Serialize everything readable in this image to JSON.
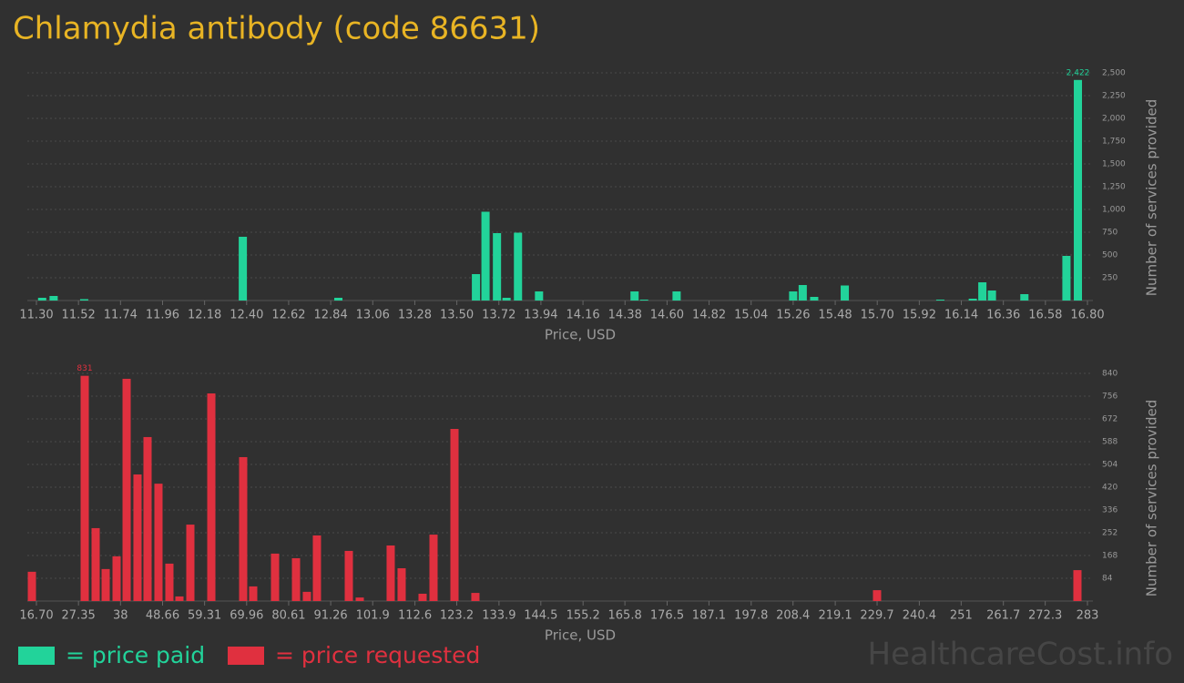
{
  "title": "Chlamydia antibody (code 86631)",
  "watermark": "HealthcareCost.info",
  "chart_data": [
    {
      "type": "bar",
      "xlabel": "Price, USD",
      "ylabel": "Number of services provided",
      "x": [
        11.33,
        11.39,
        11.55,
        12.38,
        12.88,
        13.6,
        13.65,
        13.71,
        13.76,
        13.82,
        13.93,
        14.43,
        14.48,
        14.65,
        15.26,
        15.31,
        15.37,
        15.53,
        16.03,
        16.2,
        16.25,
        16.3,
        16.47,
        16.69,
        16.75
      ],
      "series": [
        {
          "name": "= price paid",
          "color": "#22d39a",
          "values": [
            30,
            50,
            15,
            700,
            30,
            290,
            975,
            740,
            30,
            745,
            100,
            100,
            10,
            100,
            100,
            170,
            40,
            165,
            10,
            20,
            200,
            110,
            70,
            490,
            2422
          ],
          "value_labels": [
            null,
            null,
            null,
            null,
            null,
            null,
            null,
            null,
            null,
            null,
            null,
            null,
            null,
            null,
            null,
            null,
            null,
            null,
            null,
            null,
            null,
            null,
            null,
            null,
            "2,422"
          ]
        }
      ],
      "xlim": [
        11.3,
        16.8
      ],
      "xticks": [
        {
          "value": 11.3,
          "label": "11.30"
        },
        11.52,
        11.74,
        11.96,
        12.18,
        {
          "value": 12.4,
          "label": "12.40"
        },
        12.62,
        12.84,
        13.06,
        13.28,
        {
          "value": 13.5,
          "label": "13.50"
        },
        13.72,
        13.94,
        14.16,
        14.38,
        {
          "value": 14.6,
          "label": "14.60"
        },
        14.82,
        15.04,
        15.26,
        15.48,
        {
          "value": 15.7,
          "label": "15.70"
        },
        15.92,
        16.14,
        16.36,
        16.58,
        {
          "value": 16.8,
          "label": "16.80"
        }
      ],
      "ylim": [
        0,
        2500
      ],
      "yticks": [
        {
          "value": 250,
          "label": "250"
        },
        {
          "value": 500,
          "label": "500"
        },
        {
          "value": 750,
          "label": "750"
        },
        {
          "value": 1000,
          "label": "1,000"
        },
        {
          "value": 1250,
          "label": "1,250"
        },
        {
          "value": 1500,
          "label": "1,500"
        },
        {
          "value": 1750,
          "label": "1,750"
        },
        {
          "value": 2000,
          "label": "2,000"
        },
        {
          "value": 2250,
          "label": "2,250"
        },
        {
          "value": 2500,
          "label": "2,500"
        }
      ],
      "grid": true
    },
    {
      "type": "bar",
      "xlabel": "Price, USD",
      "ylabel": "Number of services provided",
      "x": [
        15.55,
        28.93,
        31.7,
        34.24,
        37.01,
        39.55,
        42.31,
        44.85,
        47.62,
        50.39,
        52.93,
        55.7,
        61.01,
        69.08,
        71.62,
        77.16,
        82.47,
        85.23,
        87.77,
        95.85,
        98.62,
        106.46,
        109.23,
        114.54,
        117.31,
        122.62,
        127.92,
        229.69,
        280.46
      ],
      "series": [
        {
          "name": "= price requested",
          "color": "#e0303f",
          "values": [
            108,
            831,
            269,
            118,
            165,
            820,
            467,
            605,
            433,
            138,
            17,
            282,
            766,
            531,
            54,
            175,
            158,
            34,
            242,
            185,
            13,
            205,
            121,
            27,
            245,
            635,
            30,
            40,
            114
          ],
          "value_labels": [
            null,
            "831",
            null,
            null,
            null,
            null,
            null,
            null,
            null,
            null,
            null,
            null,
            null,
            null,
            null,
            null,
            null,
            null,
            null,
            null,
            null,
            null,
            null,
            null,
            null,
            null,
            null,
            null,
            null
          ]
        }
      ],
      "xlim": [
        16.7,
        283
      ],
      "xticks": [
        {
          "value": 16.7,
          "label": "16.70"
        },
        27.35,
        38,
        48.66,
        59.31,
        69.96,
        80.61,
        91.26,
        101.9,
        112.6,
        123.2,
        133.9,
        144.5,
        155.2,
        165.8,
        176.5,
        187.1,
        197.8,
        208.4,
        219.1,
        229.7,
        240.4,
        251,
        261.7,
        272.3,
        283
      ],
      "ylim": [
        0,
        840
      ],
      "yticks": [
        84,
        168,
        252,
        336,
        420,
        504,
        588,
        672,
        756,
        840
      ],
      "grid": true
    }
  ]
}
